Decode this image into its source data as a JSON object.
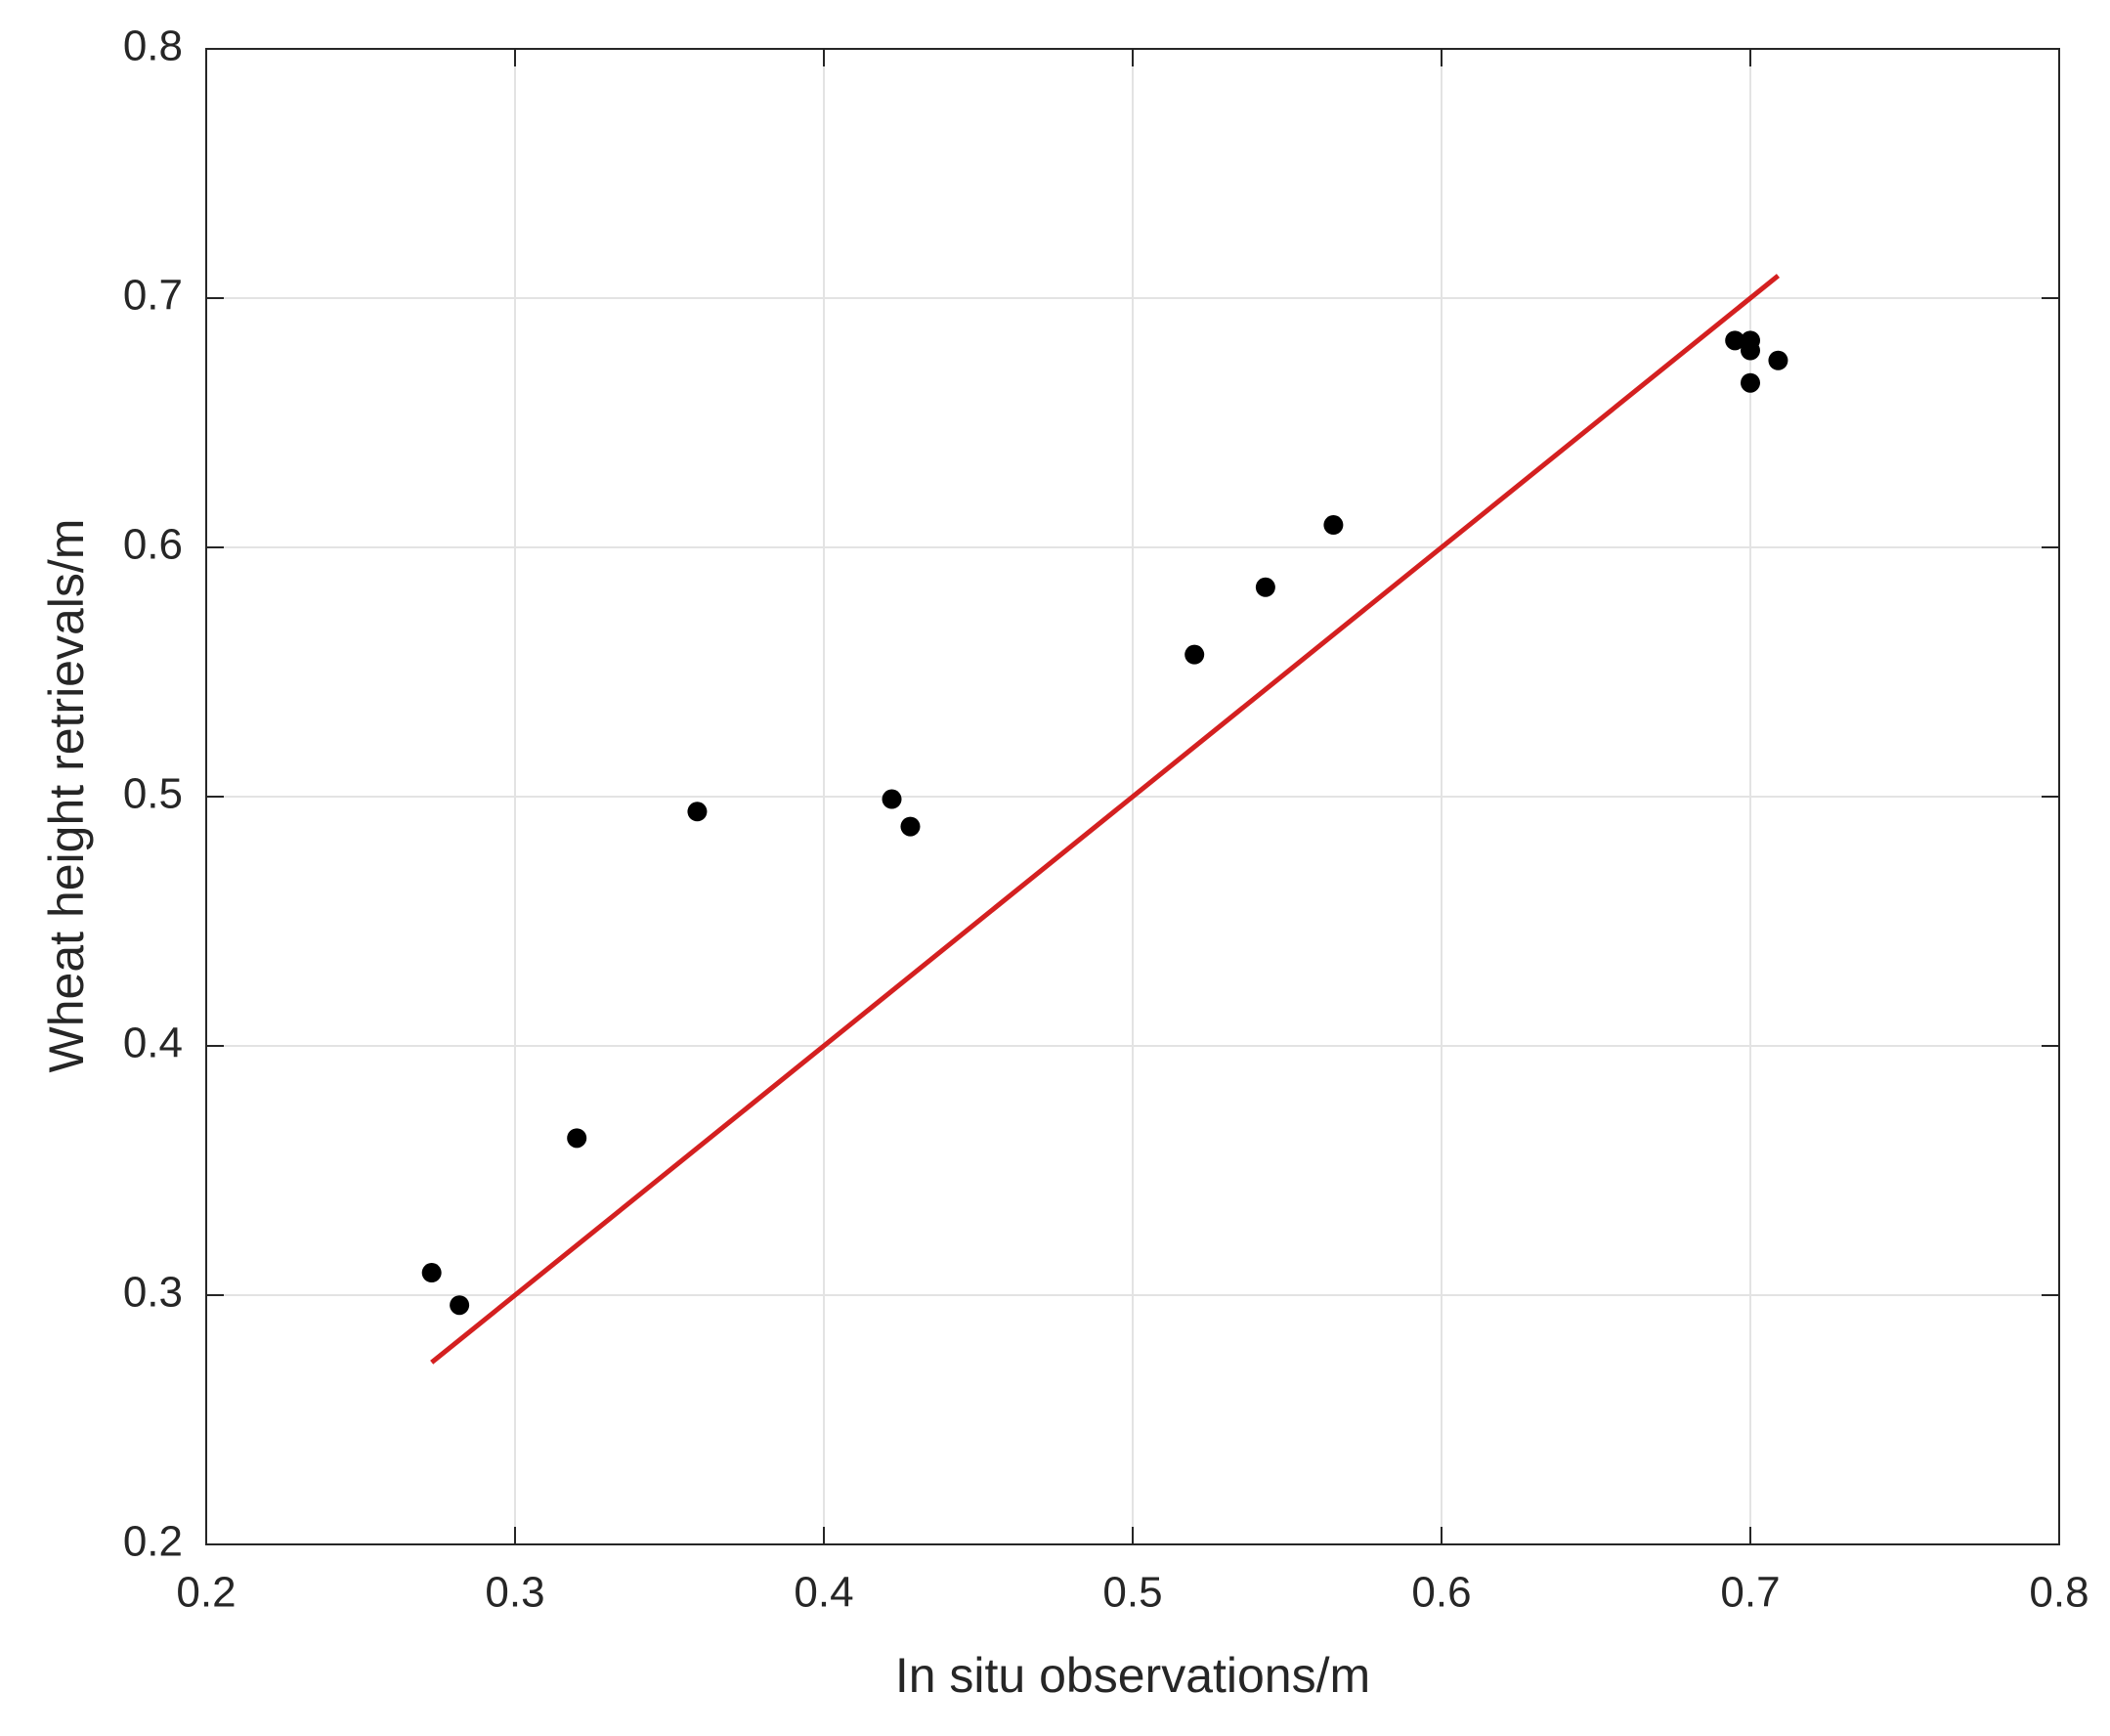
{
  "chart_data": {
    "type": "scatter",
    "xlabel": "In situ observations/m",
    "ylabel": "Wheat height retrievals/m",
    "xlim": [
      0.2,
      0.8
    ],
    "xticks": [
      0.2,
      0.3,
      0.4,
      0.5,
      0.6,
      0.7,
      0.8
    ],
    "ylim": [
      0.2,
      0.8
    ],
    "yticks": [
      0.2,
      0.3,
      0.4,
      0.5,
      0.6,
      0.7,
      0.8
    ],
    "grid": true,
    "series": [
      {
        "type": "scatter",
        "color": "#000000",
        "x": [
          0.273,
          0.282,
          0.32,
          0.359,
          0.422,
          0.428,
          0.52,
          0.543,
          0.565,
          0.695,
          0.7,
          0.7,
          0.7,
          0.709
        ],
        "values": [
          0.309,
          0.296,
          0.363,
          0.494,
          0.499,
          0.488,
          0.557,
          0.584,
          0.609,
          0.683,
          0.683,
          0.679,
          0.666,
          0.675
        ]
      },
      {
        "type": "line",
        "color": "#d42020",
        "x": [
          0.273,
          0.709
        ],
        "values": [
          0.273,
          0.709
        ]
      }
    ]
  }
}
